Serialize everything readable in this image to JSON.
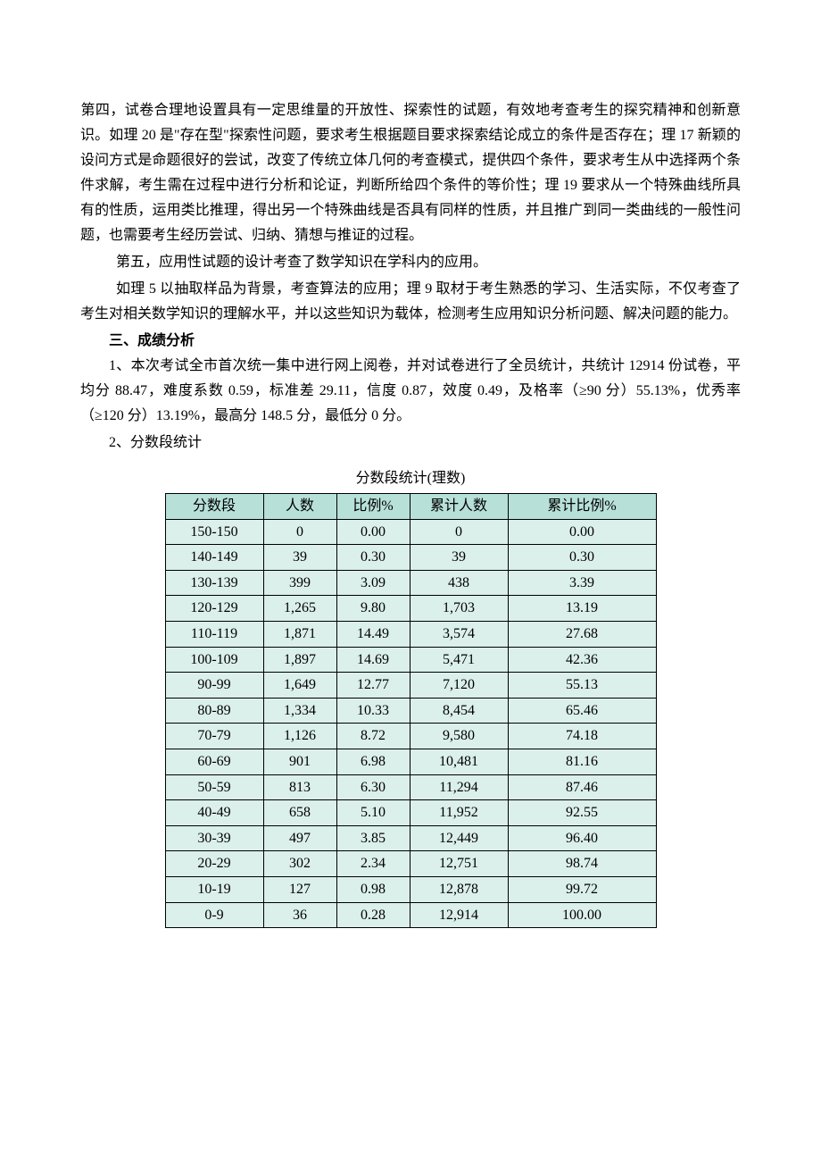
{
  "paragraphs": {
    "p1": "第四，试卷合理地设置具有一定思维量的开放性、探索性的试题，有效地考查考生的探究精神和创新意识。如理 20 是\"存在型\"探索性问题，要求考生根据题目要求探索结论成立的条件是否存在；理 17 新颖的设问方式是命题很好的尝试，改变了传统立体几何的考查模式，提供四个条件，要求考生从中选择两个条件求解，考生需在过程中进行分析和论证，判断所给四个条件的等价性；理 19 要求从一个特殊曲线所具有的性质，运用类比推理，得出另一个特殊曲线是否具有同样的性质，并且推广到同一类曲线的一般性问题，也需要考生经历尝试、归纳、猜想与推证的过程。",
    "p2": "第五，应用性试题的设计考查了数学知识在学科内的应用。",
    "p3": "如理 5 以抽取样品为背景，考查算法的应用；理 9 取材于考生熟悉的学习、生活实际，不仅考查了考生对相关数学知识的理解水平，并以这些知识为载体，检测考生应用知识分析问题、解决问题的能力。",
    "section_title": "三、成绩分析",
    "p4": "1、本次考试全市首次统一集中进行网上阅卷，并对试卷进行了全员统计，共统计 12914 份试卷，平均分 88.47，难度系数 0.59，标准差 29.11，信度 0.87，效度 0.49，及格率（≥90 分）55.13%，优秀率（≥120 分）13.19%，最高分 148.5 分，最低分 0 分。",
    "p5": "2、分数段统计"
  },
  "table": {
    "title": "分数段统计(理数)",
    "headers": [
      "分数段",
      "人数",
      "比例%",
      "累计人数",
      "累计比例%"
    ],
    "col_widths": [
      "110px",
      "82px",
      "82px",
      "110px",
      "166px"
    ],
    "header_bg": "#b7e0d8",
    "cell_bg": "#dbefeb",
    "border_color": "#000000",
    "rows": [
      [
        "150-150",
        "0",
        "0.00",
        "0",
        "0.00"
      ],
      [
        "140-149",
        "39",
        "0.30",
        "39",
        "0.30"
      ],
      [
        "130-139",
        "399",
        "3.09",
        "438",
        "3.39"
      ],
      [
        "120-129",
        "1,265",
        "9.80",
        "1,703",
        "13.19"
      ],
      [
        "110-119",
        "1,871",
        "14.49",
        "3,574",
        "27.68"
      ],
      [
        "100-109",
        "1,897",
        "14.69",
        "5,471",
        "42.36"
      ],
      [
        "90-99",
        "1,649",
        "12.77",
        "7,120",
        "55.13"
      ],
      [
        "80-89",
        "1,334",
        "10.33",
        "8,454",
        "65.46"
      ],
      [
        "70-79",
        "1,126",
        "8.72",
        "9,580",
        "74.18"
      ],
      [
        "60-69",
        "901",
        "6.98",
        "10,481",
        "81.16"
      ],
      [
        "50-59",
        "813",
        "6.30",
        "11,294",
        "87.46"
      ],
      [
        "40-49",
        "658",
        "5.10",
        "11,952",
        "92.55"
      ],
      [
        "30-39",
        "497",
        "3.85",
        "12,449",
        "96.40"
      ],
      [
        "20-29",
        "302",
        "2.34",
        "12,751",
        "98.74"
      ],
      [
        "10-19",
        "127",
        "0.98",
        "12,878",
        "99.72"
      ],
      [
        "0-9",
        "36",
        "0.28",
        "12,914",
        "100.00"
      ]
    ]
  }
}
